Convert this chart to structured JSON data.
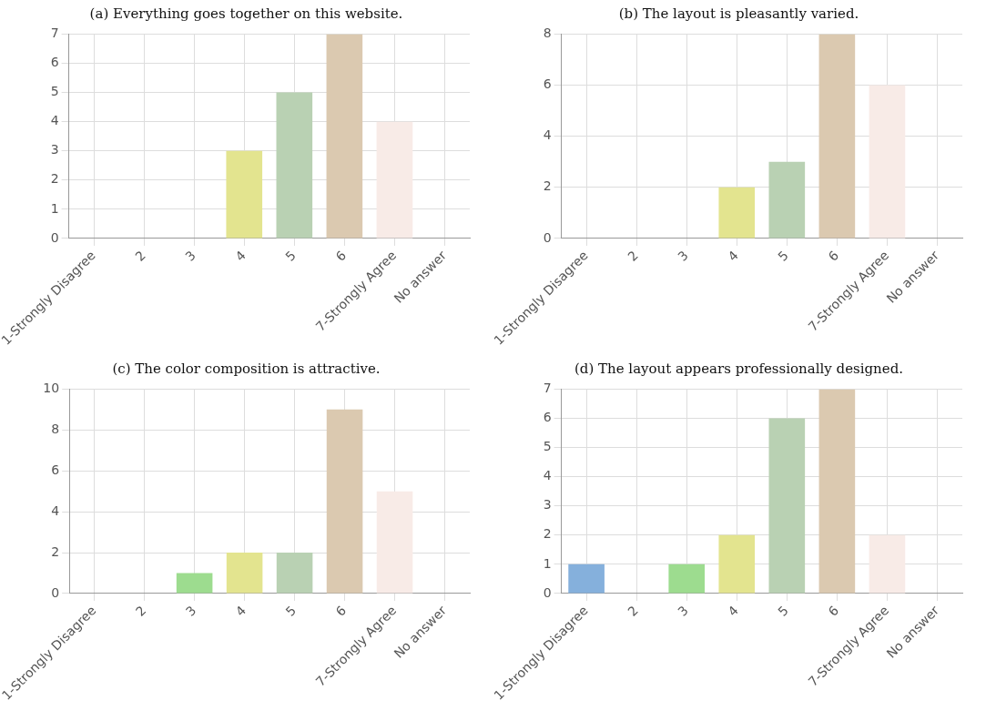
{
  "chart_data": [
    {
      "type": "bar",
      "title": "(a) Everything goes together on this website.",
      "categories": [
        "1-Strongly Disagree",
        "2",
        "3",
        "4",
        "5",
        "6",
        "7-Strongly Agree",
        "No answer"
      ],
      "values": [
        0,
        0,
        0,
        3,
        5,
        7,
        4,
        0
      ],
      "colors": [
        "#85b0dc",
        "#f0b27a",
        "#9ddc8f",
        "#e3e48f",
        "#b9d1b3",
        "#dbc9b0",
        "#f8ebe7",
        "#cccccc"
      ],
      "ylim": [
        0,
        7
      ],
      "yticks": [
        0,
        1,
        2,
        3,
        4,
        5,
        6,
        7
      ],
      "grid": true
    },
    {
      "type": "bar",
      "title": "(b) The layout is pleasantly varied.",
      "categories": [
        "1-Strongly Disagree",
        "2",
        "3",
        "4",
        "5",
        "6",
        "7-Strongly Agree",
        "No answer"
      ],
      "values": [
        0,
        0,
        0,
        2,
        3,
        8,
        6,
        0
      ],
      "colors": [
        "#85b0dc",
        "#f0b27a",
        "#9ddc8f",
        "#e3e48f",
        "#b9d1b3",
        "#dbc9b0",
        "#f8ebe7",
        "#cccccc"
      ],
      "ylim": [
        0,
        8
      ],
      "yticks": [
        0,
        2,
        4,
        6,
        8
      ],
      "grid": true
    },
    {
      "type": "bar",
      "title": "(c) The color composition is attractive.",
      "categories": [
        "1-Strongly Disagree",
        "2",
        "3",
        "4",
        "5",
        "6",
        "7-Strongly Agree",
        "No answer"
      ],
      "values": [
        0,
        0,
        1,
        2,
        2,
        9,
        5,
        0
      ],
      "colors": [
        "#85b0dc",
        "#f0b27a",
        "#9ddc8f",
        "#e3e48f",
        "#b9d1b3",
        "#dbc9b0",
        "#f8ebe7",
        "#cccccc"
      ],
      "ylim": [
        0,
        10
      ],
      "yticks": [
        0,
        2,
        4,
        6,
        8,
        10
      ],
      "grid": true
    },
    {
      "type": "bar",
      "title": "(d) The layout appears professionally designed.",
      "categories": [
        "1-Strongly Disagree",
        "2",
        "3",
        "4",
        "5",
        "6",
        "7-Strongly Agree",
        "No answer"
      ],
      "values": [
        1,
        0,
        1,
        2,
        6,
        7,
        2,
        0
      ],
      "colors": [
        "#85b0dc",
        "#f0b27a",
        "#9ddc8f",
        "#e3e48f",
        "#b9d1b3",
        "#dbc9b0",
        "#f8ebe7",
        "#cccccc"
      ],
      "ylim": [
        0,
        7
      ],
      "yticks": [
        0,
        1,
        2,
        3,
        4,
        5,
        6,
        7
      ],
      "grid": true
    }
  ]
}
